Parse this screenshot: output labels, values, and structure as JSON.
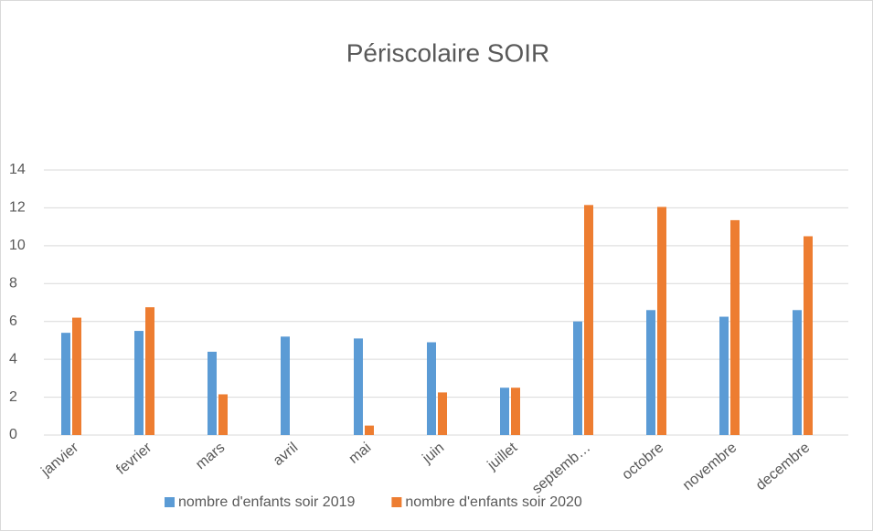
{
  "chart_data": {
    "type": "bar",
    "title": "Périscolaire SOIR",
    "categories": [
      "janvier",
      "fevrier",
      "mars",
      "avril",
      "mai",
      "juin",
      "juillet",
      "septemb…",
      "octobre",
      "novembre",
      "decembre"
    ],
    "series": [
      {
        "name": "nombre d'enfants soir 2019",
        "color": "#5b9bd5",
        "values": [
          5.4,
          5.5,
          4.4,
          5.2,
          5.1,
          4.9,
          2.5,
          6.0,
          6.6,
          6.25,
          6.6
        ]
      },
      {
        "name": "nombre d'enfants soir 2020",
        "color": "#ed7d31",
        "values": [
          6.2,
          6.75,
          2.15,
          0,
          0.5,
          2.25,
          2.5,
          12.15,
          12.05,
          11.35,
          10.5
        ]
      }
    ],
    "ylim": [
      0,
      14
    ],
    "yticks": [
      0,
      2,
      4,
      6,
      8,
      10,
      12,
      14
    ],
    "grid": true,
    "legend": "bottom"
  }
}
